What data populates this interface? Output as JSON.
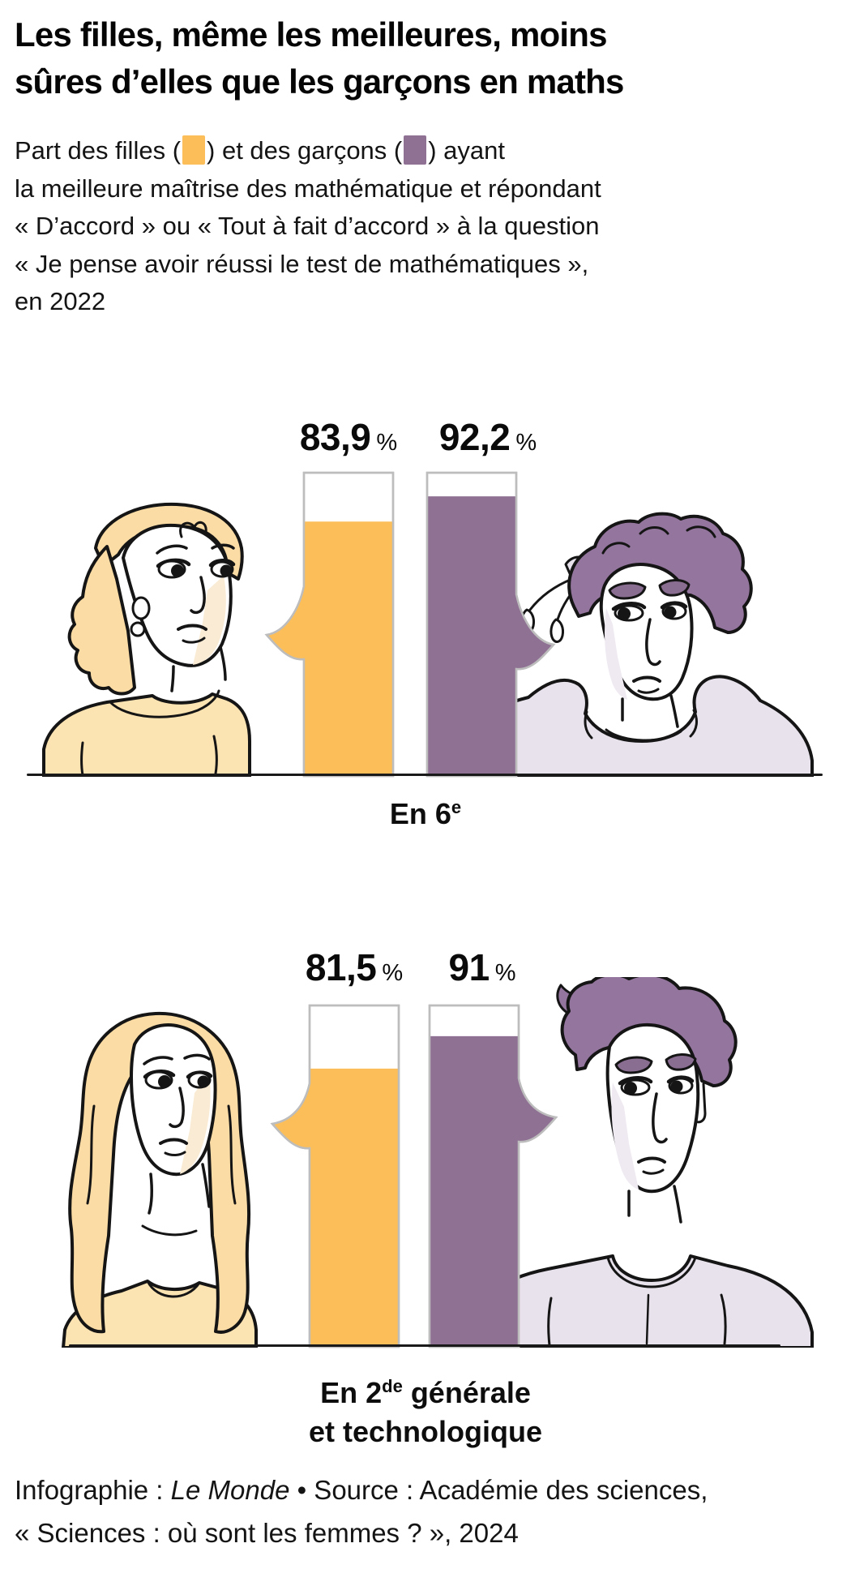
{
  "title": {
    "line1": "Les filles, même les meilleures, moins",
    "line2": "sûres d’elles que les garçons en maths"
  },
  "subtitle": {
    "line1_pre": "Part des filles (",
    "line1_mid": ") et des garçons (",
    "line1_post": ") ayant",
    "line2": "la meilleure maîtrise des mathématique et répondant",
    "line3": "« D’accord »  ou « Tout à fait d’accord » à la question",
    "line4": "« Je pense avoir réussi le test de mathématiques »,",
    "line5": "en 2022"
  },
  "chart_data": {
    "type": "bar",
    "title": "Les filles, même les meilleures, moins sûres d’elles que les garçons en maths",
    "unit": "%",
    "value_suffix": "%",
    "categories": [
      "En 6e",
      "En 2de générale et technologique"
    ],
    "series": [
      {
        "name": "Filles",
        "color": "#FBBE59",
        "values": [
          83.9,
          81.5
        ],
        "display": [
          "83,9",
          "81,5"
        ]
      },
      {
        "name": "Garçons",
        "color": "#8F7193",
        "values": [
          92.2,
          91
        ],
        "display": [
          "92,2",
          "91"
        ]
      }
    ],
    "ylim": [
      0,
      100
    ],
    "grid": false,
    "legend_position": "inline-subtitle"
  },
  "sections": [
    {
      "label_pre": "En 6",
      "label_sup": "e",
      "label_post": ""
    },
    {
      "label_line1_pre": "En 2",
      "label_line1_sup": "de",
      "label_line1_post": " générale",
      "label_line2": "et technologique"
    }
  ],
  "footer": {
    "line1_pre": "Infographie : ",
    "line1_italic": "Le Monde",
    "line1_post": " • Source : Académie des sciences,",
    "line2": "« Sciences : où sont les femmes ? », 2024"
  },
  "colors": {
    "bar_outline": "#BDBDBD",
    "baseline": "#1A1A1A",
    "girl_hair": "#FBDCA4",
    "girl_top": "#FCE3B2",
    "boy_hair": "#94759E",
    "boy_top": "#E8E2EC",
    "girl_shade": "#F9EBD4",
    "boy_shade": "#EFE9F1",
    "brow_purple": "#8A6E92"
  }
}
